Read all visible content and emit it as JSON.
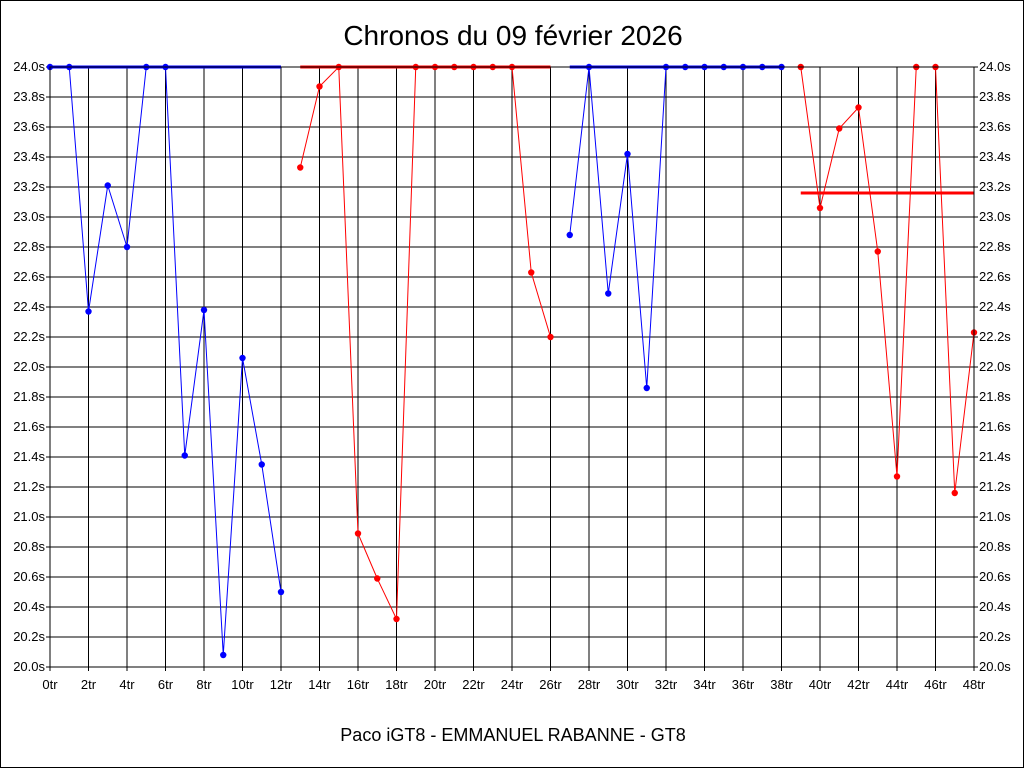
{
  "chart_data": {
    "type": "line",
    "title": "Chronos du 09 février 2026",
    "subtitle": "Paco iGT8 - EMMANUEL RABANNE - GT8",
    "xlim": [
      0,
      48
    ],
    "ylim": [
      20.0,
      24.0
    ],
    "grid": true,
    "x_ticks": [
      0,
      2,
      4,
      6,
      8,
      10,
      12,
      14,
      16,
      18,
      20,
      22,
      24,
      26,
      28,
      30,
      32,
      34,
      36,
      38,
      40,
      42,
      44,
      46,
      48
    ],
    "x_tick_labels": [
      "0tr",
      "2tr",
      "4tr",
      "6tr",
      "8tr",
      "10tr",
      "12tr",
      "14tr",
      "16tr",
      "18tr",
      "20tr",
      "22tr",
      "24tr",
      "26tr",
      "28tr",
      "30tr",
      "32tr",
      "34tr",
      "36tr",
      "38tr",
      "40tr",
      "42tr",
      "44tr",
      "46tr",
      "48tr"
    ],
    "y_ticks": [
      20.0,
      20.2,
      20.4,
      20.6,
      20.8,
      21.0,
      21.2,
      21.4,
      21.6,
      21.8,
      22.0,
      22.2,
      22.4,
      22.6,
      22.8,
      23.0,
      23.2,
      23.4,
      23.6,
      23.8,
      24.0
    ],
    "y_tick_labels": [
      "20.0s",
      "20.2s",
      "20.4s",
      "20.6s",
      "20.8s",
      "21.0s",
      "21.2s",
      "21.4s",
      "21.6s",
      "21.8s",
      "22.0s",
      "22.2s",
      "22.4s",
      "22.6s",
      "22.8s",
      "23.0s",
      "23.2s",
      "23.4s",
      "23.6s",
      "23.8s",
      "24.0s"
    ],
    "series": [
      {
        "color": "#0000ff",
        "points": [
          [
            0,
            24.0
          ],
          [
            1,
            24.0
          ],
          [
            2,
            22.37
          ],
          [
            3,
            23.21
          ],
          [
            4,
            22.8
          ],
          [
            5,
            24.0
          ],
          [
            6,
            24.0
          ],
          [
            7,
            21.41
          ],
          [
            8,
            22.38
          ],
          [
            9,
            20.08
          ],
          [
            10,
            22.06
          ],
          [
            11,
            21.35
          ],
          [
            12,
            20.5
          ]
        ],
        "reference": {
          "from": 0,
          "to": 12,
          "y": 24.0
        }
      },
      {
        "color": "#ff0000",
        "points": [
          [
            13,
            23.33
          ],
          [
            14,
            23.87
          ],
          [
            15,
            24.0
          ],
          [
            16,
            20.89
          ],
          [
            17,
            20.59
          ],
          [
            18,
            20.32
          ],
          [
            19,
            24.0
          ],
          [
            20,
            24.0
          ],
          [
            21,
            24.0
          ],
          [
            22,
            24.0
          ],
          [
            23,
            24.0
          ],
          [
            24,
            24.0
          ],
          [
            25,
            22.63
          ],
          [
            26,
            22.2
          ]
        ],
        "reference": {
          "from": 13,
          "to": 26,
          "y": 24.0
        }
      },
      {
        "color": "#0000ff",
        "points": [
          [
            27,
            22.88
          ],
          [
            28,
            24.0
          ],
          [
            29,
            22.49
          ],
          [
            30,
            23.42
          ],
          [
            31,
            21.86
          ],
          [
            32,
            24.0
          ],
          [
            33,
            24.0
          ],
          [
            34,
            24.0
          ],
          [
            35,
            24.0
          ],
          [
            36,
            24.0
          ],
          [
            37,
            24.0
          ],
          [
            38,
            24.0
          ]
        ],
        "reference": {
          "from": 27,
          "to": 38,
          "y": 24.0
        }
      },
      {
        "color": "#ff0000",
        "points": [
          [
            39,
            24.0
          ],
          [
            40,
            23.06
          ],
          [
            41,
            23.59
          ],
          [
            42,
            23.73
          ],
          [
            43,
            22.77
          ],
          [
            44,
            21.27
          ],
          [
            45,
            24.0
          ],
          [
            46,
            24.0
          ],
          [
            47,
            21.16
          ],
          [
            48,
            22.23
          ]
        ],
        "reference": {
          "from": 39,
          "to": 48,
          "y": 23.16
        }
      }
    ]
  }
}
